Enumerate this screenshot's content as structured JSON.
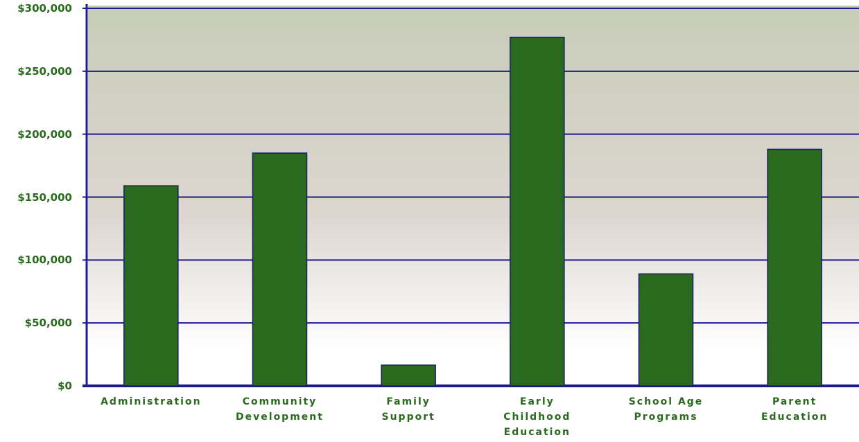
{
  "chart_data": {
    "type": "bar",
    "categories": [
      "Administration",
      "Community\nDevelopment",
      "Family\nSupport",
      "Early\nChildhood\nEducation",
      "School   Age\nPrograms",
      "Parent\nEducation"
    ],
    "values": [
      159000,
      185000,
      16500,
      277000,
      89000,
      188000
    ],
    "color": "#2a6a1e",
    "ylim": [
      0,
      300000
    ],
    "yticks": [
      {
        "value": 0,
        "label": "$0"
      },
      {
        "value": 50000,
        "label": "$50,000"
      },
      {
        "value": 100000,
        "label": "$100,000"
      },
      {
        "value": 150000,
        "label": "$150,000"
      },
      {
        "value": 200000,
        "label": "$200,000"
      },
      {
        "value": 250000,
        "label": "$250,000"
      },
      {
        "value": 300000,
        "label": "$300,000"
      }
    ],
    "grid": true
  }
}
